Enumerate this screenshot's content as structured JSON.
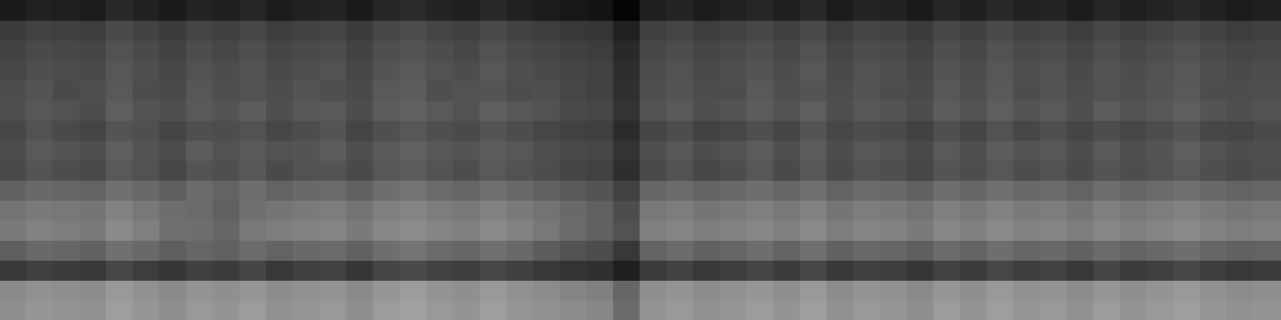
{
  "chart_data": {
    "type": "heatmap",
    "tick_labels": false,
    "color": "#ffffff",
    "zlim": [
      0,
      100
    ],
    "cells": [
      [
        10,
        13,
        12,
        11,
        16,
        13,
        10,
        14,
        12,
        15,
        11,
        13,
        14,
        10,
        15,
        17,
        14,
        12,
        16,
        13,
        11,
        9,
        8,
        2,
        12,
        14,
        11,
        13,
        15,
        12,
        16,
        11,
        14,
        13,
        10,
        15,
        12,
        16,
        13,
        14,
        11,
        15,
        12,
        14,
        16,
        13,
        11,
        12
      ],
      [
        23,
        26,
        25,
        24,
        29,
        26,
        23,
        27,
        25,
        28,
        24,
        26,
        27,
        23,
        28,
        30,
        27,
        25,
        29,
        26,
        24,
        22,
        21,
        13,
        25,
        27,
        24,
        26,
        28,
        25,
        29,
        24,
        27,
        26,
        23,
        28,
        25,
        29,
        26,
        27,
        24,
        28,
        25,
        27,
        29,
        26,
        24,
        25
      ],
      [
        26,
        29,
        28,
        27,
        32,
        29,
        26,
        30,
        28,
        31,
        27,
        29,
        30,
        26,
        31,
        33,
        30,
        28,
        32,
        29,
        27,
        25,
        24,
        16,
        28,
        30,
        27,
        29,
        31,
        28,
        32,
        27,
        30,
        29,
        26,
        31,
        28,
        32,
        29,
        30,
        27,
        31,
        28,
        30,
        32,
        29,
        27,
        28
      ],
      [
        28,
        31,
        30,
        29,
        34,
        31,
        28,
        32,
        30,
        33,
        29,
        31,
        32,
        28,
        33,
        35,
        32,
        30,
        34,
        31,
        29,
        27,
        26,
        18,
        30,
        32,
        29,
        31,
        33,
        30,
        34,
        29,
        32,
        31,
        28,
        33,
        30,
        34,
        31,
        32,
        29,
        33,
        30,
        32,
        34,
        31,
        29,
        30
      ],
      [
        30,
        33,
        29,
        31,
        35,
        30,
        29,
        34,
        31,
        32,
        30,
        33,
        31,
        29,
        35,
        36,
        31,
        32,
        33,
        30,
        31,
        28,
        26,
        19,
        31,
        33,
        30,
        30,
        35,
        31,
        33,
        30,
        33,
        30,
        29,
        34,
        31,
        35,
        30,
        33,
        30,
        32,
        31,
        33,
        35,
        30,
        30,
        31
      ],
      [
        31,
        34,
        32,
        30,
        37,
        33,
        31,
        35,
        33,
        36,
        31,
        34,
        35,
        30,
        36,
        38,
        35,
        32,
        37,
        34,
        32,
        29,
        28,
        20,
        32,
        35,
        31,
        33,
        36,
        32,
        37,
        31,
        34,
        33,
        30,
        36,
        32,
        37,
        33,
        35,
        31,
        36,
        32,
        34,
        37,
        33,
        31,
        32
      ],
      [
        28,
        32,
        29,
        27,
        33,
        31,
        27,
        31,
        30,
        32,
        28,
        30,
        33,
        27,
        31,
        34,
        31,
        29,
        33,
        30,
        28,
        26,
        25,
        17,
        27,
        30,
        26,
        28,
        31,
        27,
        33,
        28,
        30,
        29,
        26,
        31,
        27,
        32,
        28,
        31,
        27,
        30,
        28,
        30,
        33,
        28,
        27,
        29
      ],
      [
        30,
        35,
        33,
        31,
        37,
        33,
        30,
        36,
        32,
        35,
        32,
        33,
        36,
        31,
        35,
        38,
        34,
        33,
        36,
        34,
        31,
        29,
        28,
        20,
        31,
        34,
        30,
        32,
        36,
        31,
        36,
        30,
        34,
        32,
        29,
        35,
        31,
        36,
        33,
        34,
        30,
        35,
        31,
        33,
        37,
        32,
        30,
        31
      ],
      [
        29,
        33,
        30,
        29,
        35,
        32,
        28,
        33,
        31,
        34,
        29,
        32,
        33,
        29,
        34,
        36,
        33,
        30,
        35,
        32,
        30,
        27,
        26,
        18,
        29,
        32,
        28,
        30,
        34,
        29,
        34,
        29,
        32,
        31,
        28,
        33,
        30,
        34,
        30,
        32,
        29,
        33,
        30,
        32,
        35,
        31,
        29,
        30
      ],
      [
        38,
        41,
        40,
        39,
        44,
        41,
        37,
        42,
        39,
        43,
        39,
        41,
        42,
        38,
        43,
        45,
        42,
        40,
        44,
        41,
        38,
        35,
        33,
        26,
        40,
        42,
        39,
        41,
        43,
        40,
        44,
        39,
        42,
        41,
        38,
        43,
        40,
        44,
        41,
        42,
        39,
        43,
        40,
        42,
        44,
        41,
        39,
        40
      ],
      [
        45,
        48,
        47,
        46,
        51,
        47,
        43,
        42,
        38,
        44,
        46,
        48,
        49,
        45,
        50,
        52,
        49,
        47,
        51,
        48,
        45,
        41,
        38,
        30,
        47,
        49,
        46,
        48,
        50,
        47,
        51,
        46,
        49,
        48,
        45,
        50,
        47,
        51,
        48,
        49,
        46,
        50,
        47,
        49,
        51,
        48,
        46,
        47
      ],
      [
        48,
        51,
        49,
        48,
        54,
        50,
        44,
        43,
        40,
        47,
        49,
        51,
        52,
        48,
        53,
        55,
        52,
        50,
        54,
        51,
        47,
        42,
        38,
        32,
        50,
        52,
        49,
        51,
        53,
        50,
        54,
        49,
        52,
        51,
        48,
        53,
        50,
        54,
        51,
        52,
        49,
        53,
        50,
        52,
        54,
        51,
        49,
        50
      ],
      [
        37,
        41,
        40,
        38,
        44,
        41,
        37,
        40,
        38,
        42,
        39,
        41,
        42,
        38,
        43,
        45,
        42,
        40,
        44,
        41,
        36,
        32,
        30,
        22,
        39,
        42,
        38,
        40,
        43,
        39,
        44,
        38,
        41,
        40,
        37,
        42,
        39,
        43,
        40,
        41,
        38,
        42,
        39,
        41,
        43,
        40,
        38,
        39
      ],
      [
        22,
        25,
        23,
        22,
        28,
        24,
        21,
        25,
        23,
        27,
        22,
        25,
        26,
        21,
        27,
        29,
        26,
        24,
        28,
        25,
        22,
        20,
        19,
        12,
        23,
        26,
        22,
        24,
        27,
        23,
        28,
        22,
        25,
        24,
        21,
        26,
        23,
        28,
        24,
        26,
        22,
        27,
        23,
        25,
        28,
        24,
        22,
        23
      ],
      [
        54,
        57,
        56,
        55,
        60,
        57,
        54,
        58,
        56,
        59,
        55,
        57,
        58,
        54,
        59,
        61,
        58,
        56,
        60,
        57,
        55,
        52,
        50,
        40,
        56,
        58,
        55,
        57,
        59,
        56,
        60,
        55,
        58,
        57,
        54,
        59,
        56,
        60,
        57,
        58,
        55,
        59,
        56,
        58,
        60,
        57,
        55,
        56
      ],
      [
        56,
        59,
        58,
        57,
        62,
        59,
        56,
        60,
        58,
        61,
        57,
        59,
        60,
        56,
        61,
        63,
        60,
        58,
        62,
        59,
        57,
        55,
        53,
        42,
        58,
        60,
        57,
        59,
        61,
        58,
        62,
        57,
        60,
        59,
        56,
        61,
        58,
        62,
        59,
        60,
        57,
        61,
        58,
        60,
        62,
        59,
        57,
        58
      ]
    ]
  }
}
